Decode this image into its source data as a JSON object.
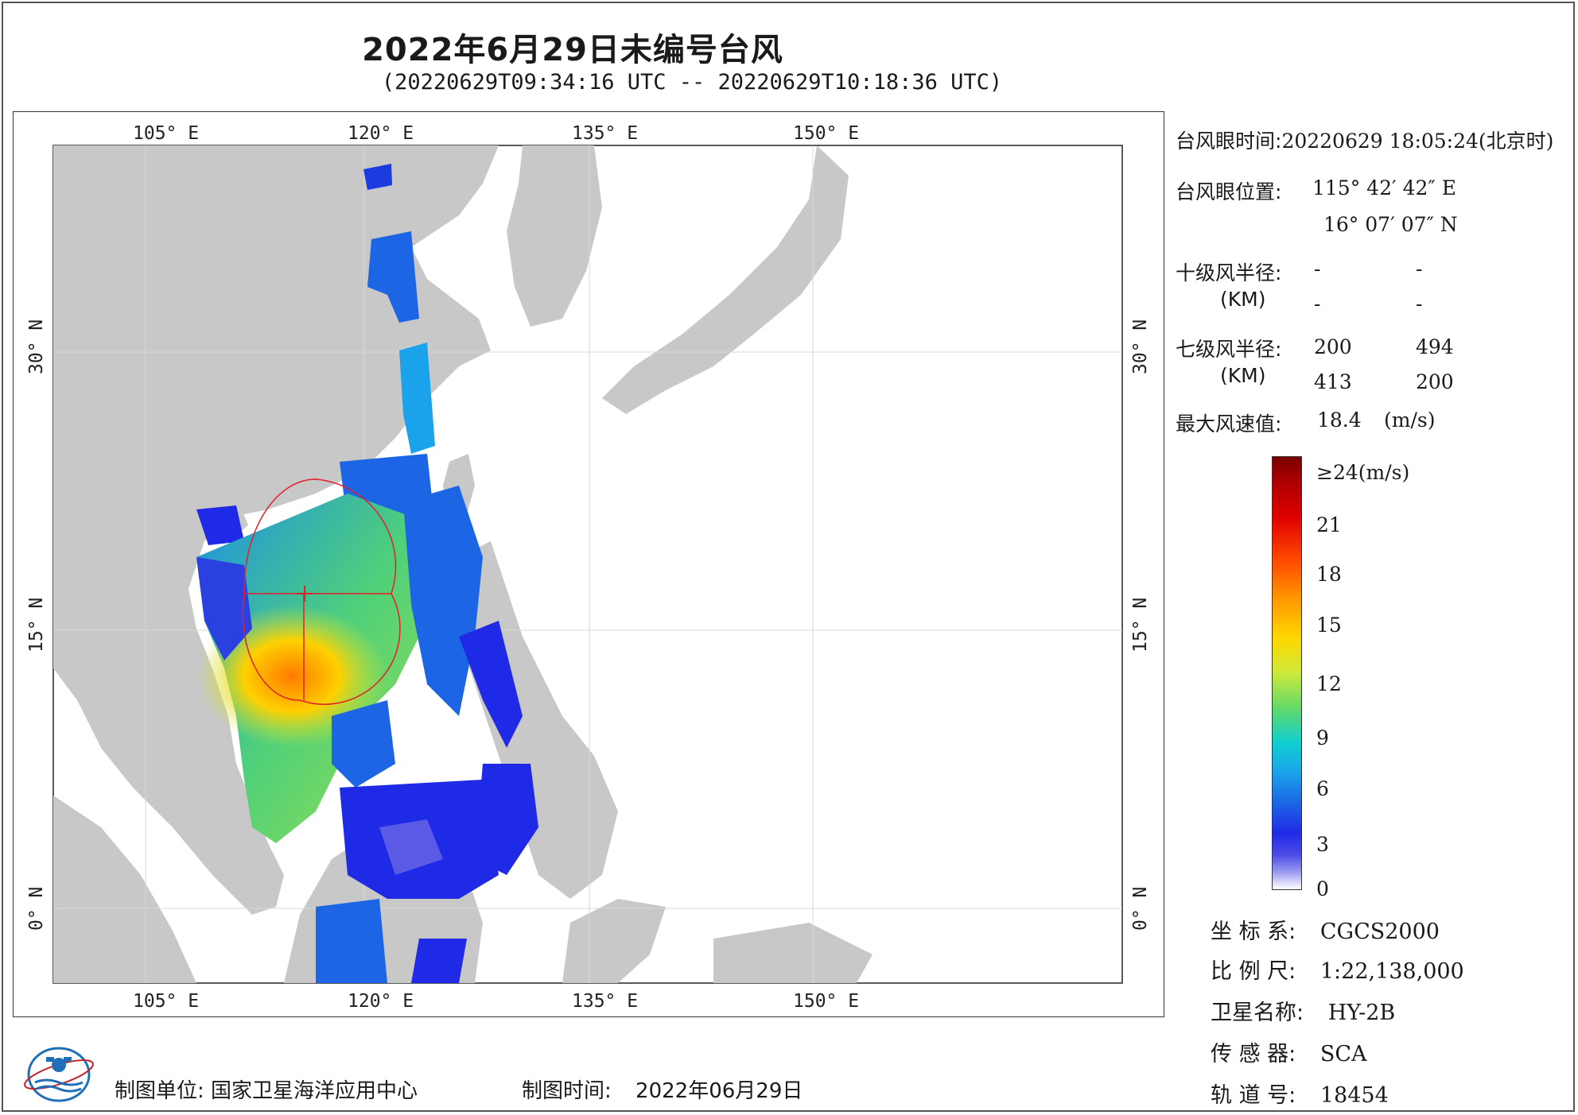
{
  "title": "2022年6月29日未编号台风",
  "subtitle": "(20220629T09:34:16 UTC -- 20220629T10:18:36 UTC)",
  "map": {
    "lon_ticks": [
      "105° E",
      "120° E",
      "135° E",
      "150° E"
    ],
    "lat_ticks": [
      "30° N",
      "15° N",
      "0° N"
    ],
    "colors": {
      "land": "#c8c8c8",
      "sea": "#ffffff",
      "circle": "#e0202a"
    }
  },
  "side": {
    "eye_time_label": "台风眼时间:",
    "eye_time_value": "20220629 18:05:24(北京时)",
    "eye_pos_label": "台风眼位置:",
    "eye_lon": "115° 42′ 42″ E",
    "eye_lat": "16° 07′ 07″ N",
    "r10_label": "十级风半径:",
    "r10_values": [
      "-",
      "-",
      "-",
      "-"
    ],
    "km_label": "(KM)",
    "r7_label": "七级风半径:",
    "r7_values": [
      "200",
      "494",
      "413",
      "200"
    ],
    "max_label": "最大风速值:",
    "max_value": "18.4",
    "max_unit": "(m/s)"
  },
  "colorbar": {
    "top_label": "≥24(m/s)",
    "labels": [
      "21",
      "18",
      "15",
      "12",
      "9",
      "6",
      "3",
      "0"
    ]
  },
  "meta": {
    "coord_label": "坐 标 系:",
    "coord_value": "CGCS2000",
    "scale_label": "比 例 尺:",
    "scale_value": "1:22,138,000",
    "sat_label": "卫星名称:",
    "sat_value": "HY-2B",
    "sensor_label": "传 感 器:",
    "sensor_value": "SCA",
    "orbit_label": "轨 道 号:",
    "orbit_value": "18454"
  },
  "footer": {
    "unit_label": "制图单位:",
    "unit_value": "国家卫星海洋应用中心",
    "time_label": "制图时间:",
    "time_value": "2022年06月29日"
  }
}
